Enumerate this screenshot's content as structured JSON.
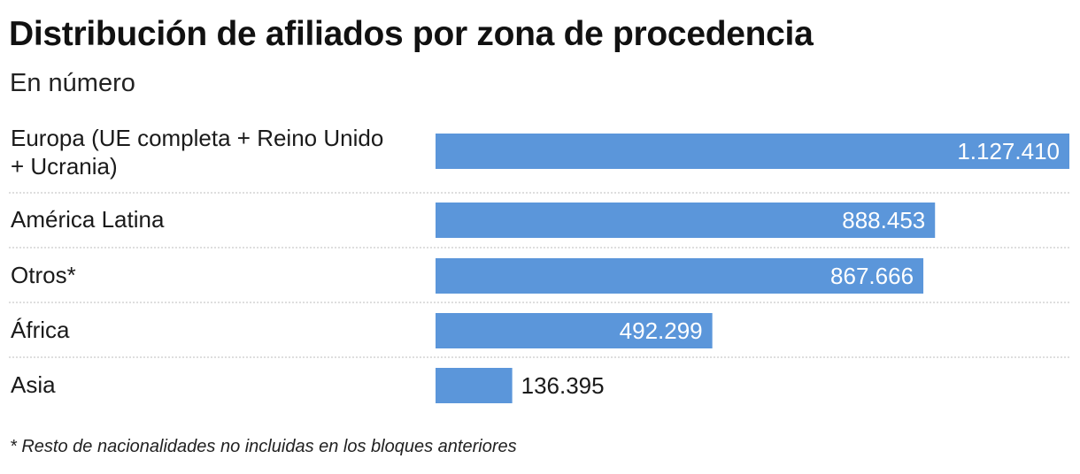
{
  "chart_data": {
    "type": "bar",
    "orientation": "horizontal",
    "title": "Distribución de afiliados por zona de procedencia",
    "subtitle": "En número",
    "categories": [
      [
        "Europa (UE completa + Reino Unido",
        "+ Ucrania)"
      ],
      [
        "América Latina"
      ],
      [
        "Otros*"
      ],
      [
        "África"
      ],
      [
        "Asia"
      ]
    ],
    "values": [
      1127410,
      888453,
      867666,
      492299,
      136395
    ],
    "value_labels": [
      "1.127.410",
      "888.453",
      "867.666",
      "492.299",
      "136.395"
    ],
    "xlim": [
      0,
      1127410
    ],
    "bar_color": "#5b96da",
    "grid": false,
    "footnote": "* Resto de nacionalidades no incluidas en los bloques anteriores"
  }
}
